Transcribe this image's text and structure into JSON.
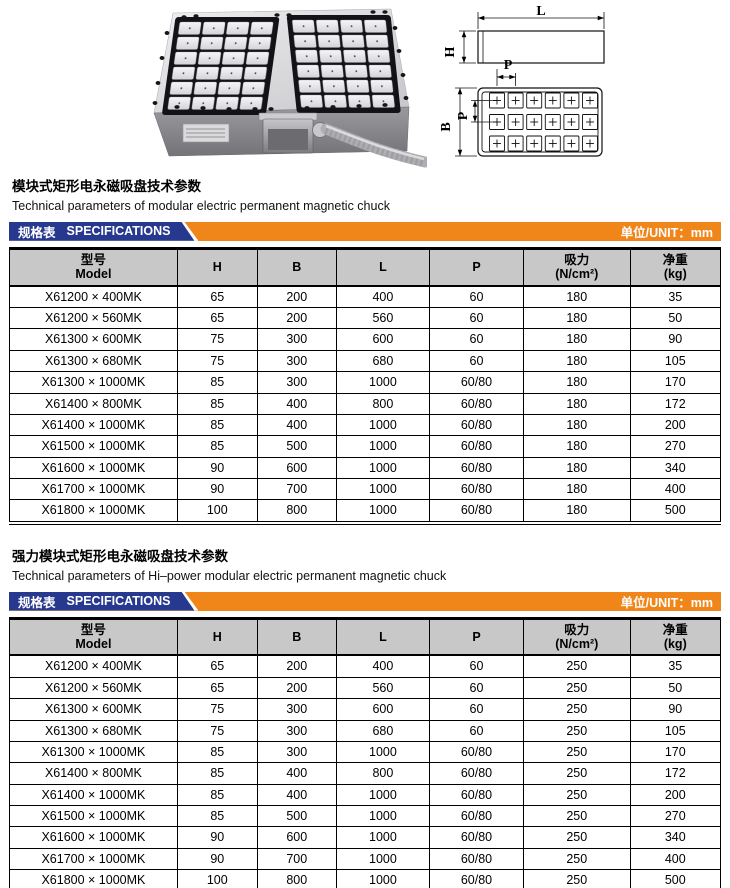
{
  "colors": {
    "accent_blue": "#27388F",
    "accent_orange": "#F08619",
    "table_header_gray": "#C8C8C8"
  },
  "drawing": {
    "length_label": "L",
    "height_label": "H",
    "width_label": "B",
    "pitch_label_top": "P",
    "pitch_label_side": "P"
  },
  "sections": [
    {
      "title_zh": "模块式矩形电永磁吸盘技术参数",
      "title_en": "Technical parameters of modular electric permanent magnetic chuck",
      "banner": {
        "tab_zh": "规格表",
        "tab_en": "SPECIFICATIONS",
        "unit": "单位/UNIT：mm"
      },
      "table": {
        "columns": [
          {
            "zh": "型号",
            "en": "Model"
          },
          {
            "zh": "H"
          },
          {
            "zh": "B"
          },
          {
            "zh": "L"
          },
          {
            "zh": "P"
          },
          {
            "zh": "吸力",
            "en": "(N/cm²)"
          },
          {
            "zh": "净重",
            "en": "(kg)"
          }
        ],
        "rows": [
          [
            "X61200 × 400MK",
            "65",
            "200",
            "400",
            "60",
            "180",
            "35"
          ],
          [
            "X61200 × 560MK",
            "65",
            "200",
            "560",
            "60",
            "180",
            "50"
          ],
          [
            "X61300 × 600MK",
            "75",
            "300",
            "600",
            "60",
            "180",
            "90"
          ],
          [
            "X61300 × 680MK",
            "75",
            "300",
            "680",
            "60",
            "180",
            "105"
          ],
          [
            "X61300 × 1000MK",
            "85",
            "300",
            "1000",
            "60/80",
            "180",
            "170"
          ],
          [
            "X61400 × 800MK",
            "85",
            "400",
            "800",
            "60/80",
            "180",
            "172"
          ],
          [
            "X61400 × 1000MK",
            "85",
            "400",
            "1000",
            "60/80",
            "180",
            "200"
          ],
          [
            "X61500 × 1000MK",
            "85",
            "500",
            "1000",
            "60/80",
            "180",
            "270"
          ],
          [
            "X61600 × 1000MK",
            "90",
            "600",
            "1000",
            "60/80",
            "180",
            "340"
          ],
          [
            "X61700 × 1000MK",
            "90",
            "700",
            "1000",
            "60/80",
            "180",
            "400"
          ],
          [
            "X61800 × 1000MK",
            "100",
            "800",
            "1000",
            "60/80",
            "180",
            "500"
          ]
        ]
      }
    },
    {
      "title_zh": "强力模块式矩形电永磁吸盘技术参数",
      "title_en": "Technical parameters of Hi–power modular electric permanent magnetic chuck",
      "banner": {
        "tab_zh": "规格表",
        "tab_en": "SPECIFICATIONS",
        "unit": "单位/UNIT：mm"
      },
      "table": {
        "columns": [
          {
            "zh": "型号",
            "en": "Model"
          },
          {
            "zh": "H"
          },
          {
            "zh": "B"
          },
          {
            "zh": "L"
          },
          {
            "zh": "P"
          },
          {
            "zh": "吸力",
            "en": "(N/cm²)"
          },
          {
            "zh": "净重",
            "en": "(kg)"
          }
        ],
        "rows": [
          [
            "X61200 × 400MK",
            "65",
            "200",
            "400",
            "60",
            "250",
            "35"
          ],
          [
            "X61200 × 560MK",
            "65",
            "200",
            "560",
            "60",
            "250",
            "50"
          ],
          [
            "X61300 × 600MK",
            "75",
            "300",
            "600",
            "60",
            "250",
            "90"
          ],
          [
            "X61300 × 680MK",
            "75",
            "300",
            "680",
            "60",
            "250",
            "105"
          ],
          [
            "X61300 × 1000MK",
            "85",
            "300",
            "1000",
            "60/80",
            "250",
            "170"
          ],
          [
            "X61400 × 800MK",
            "85",
            "400",
            "800",
            "60/80",
            "250",
            "172"
          ],
          [
            "X61400 × 1000MK",
            "85",
            "400",
            "1000",
            "60/80",
            "250",
            "200"
          ],
          [
            "X61500 × 1000MK",
            "85",
            "500",
            "1000",
            "60/80",
            "250",
            "270"
          ],
          [
            "X61600 × 1000MK",
            "90",
            "600",
            "1000",
            "60/80",
            "250",
            "340"
          ],
          [
            "X61700 × 1000MK",
            "90",
            "700",
            "1000",
            "60/80",
            "250",
            "400"
          ],
          [
            "X61800 × 1000MK",
            "100",
            "800",
            "1000",
            "60/80",
            "250",
            "500"
          ]
        ]
      }
    }
  ]
}
